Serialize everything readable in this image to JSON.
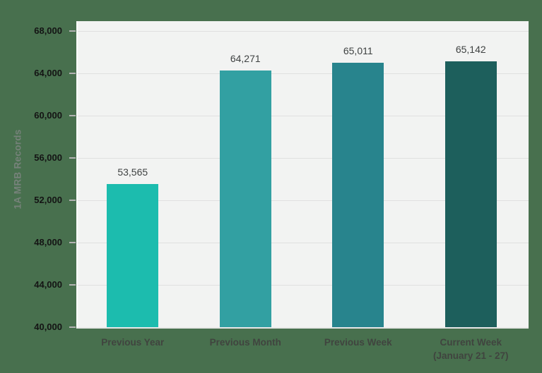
{
  "chart_data": {
    "type": "bar",
    "title": "",
    "xlabel": "",
    "ylabel": "1A MRB Records",
    "ylim": [
      40000,
      68000
    ],
    "grid": true,
    "legend": false,
    "y_tick_values": [
      68000,
      64000,
      60000,
      56000,
      52000,
      48000,
      44000,
      40000
    ],
    "y_tick_labels": [
      "68,000",
      "64,000",
      "60,000",
      "56,000",
      "52,000",
      "48,000",
      "44,000",
      "40,000"
    ],
    "categories": [
      {
        "label": "Previous Year",
        "sublabel": ""
      },
      {
        "label": "Previous Month",
        "sublabel": ""
      },
      {
        "label": "Previous Week",
        "sublabel": ""
      },
      {
        "label": "Current Week",
        "sublabel": "(January 21 - 27)"
      }
    ],
    "values": [
      53565,
      64271,
      65011,
      65142
    ],
    "value_labels": [
      "53,565",
      "64,271",
      "65,011",
      "65,142"
    ],
    "bar_colors": [
      "#1cbcae",
      "#32a0a2",
      "#28848d",
      "#1d5f5c"
    ]
  },
  "colors": {
    "page_background": "#48704e",
    "plot_background": "#f2f3f2",
    "gridline": "#e0e0e0",
    "tick_mark": "#b3b3b3",
    "y_tick_text": "#141414",
    "value_label_text": "#3f4242",
    "category_text": "#40443f",
    "y_title_text": "#76827a"
  }
}
